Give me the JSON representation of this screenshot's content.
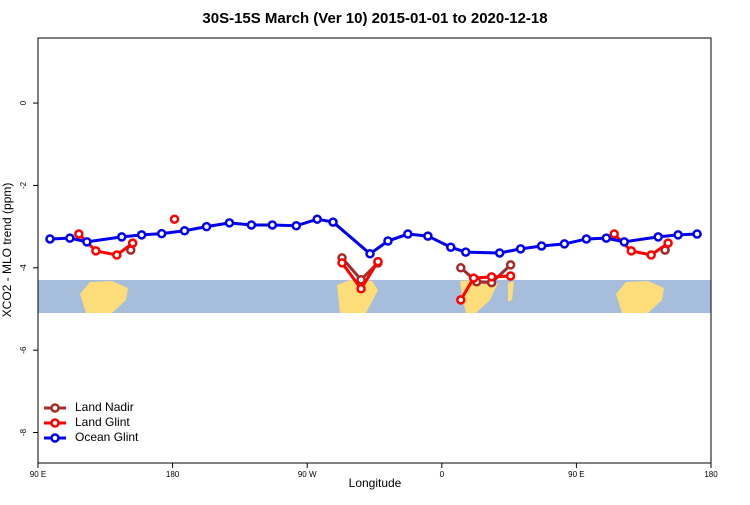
{
  "chart_data": {
    "type": "line",
    "title": "30S-15S March (Ver 10)   2015-01-01 to 2020-12-18",
    "x_label": "Longitude",
    "y_label": "XCO2 - MLO trend (ppm)",
    "xlim": [
      90,
      540
    ],
    "ylim": [
      -8.74,
      1.58
    ],
    "xticks": [
      {
        "value": 90,
        "label": "90 E"
      },
      {
        "value": 180,
        "label": "180"
      },
      {
        "value": 270,
        "label": "90 W"
      },
      {
        "value": 360,
        "label": "0"
      },
      {
        "value": 450,
        "label": "90 E"
      },
      {
        "value": 540,
        "label": "180"
      }
    ],
    "yticks": [
      0,
      -2,
      -4,
      -6,
      -8
    ],
    "legend": "bottom-left",
    "series": [
      {
        "name": "Land Nadir",
        "color": "#a52a2a",
        "x": [
          152,
          null,
          293.3,
          306,
          317.3,
          null,
          372.7,
          383.3,
          393.3,
          406,
          null,
          509.3
        ],
        "values": [
          -3.57,
          null,
          -3.76,
          -4.29,
          -3.88,
          null,
          -4.0,
          -4.34,
          -4.36,
          -3.93,
          null,
          -3.57
        ]
      },
      {
        "name": "Land Glint",
        "color": "#ff0000",
        "x": [
          117.3,
          128.7,
          142.7,
          153.3,
          null,
          181.3,
          null,
          293.3,
          306,
          317.3,
          null,
          372.7,
          381.3,
          393.3,
          406,
          null,
          475.3,
          486.7,
          500,
          511.3
        ],
        "values": [
          -3.18,
          -3.59,
          -3.69,
          -3.4,
          null,
          -2.82,
          null,
          -3.88,
          -4.51,
          -3.85,
          null,
          -4.78,
          -4.25,
          -4.22,
          -4.2,
          null,
          -3.18,
          -3.59,
          -3.69,
          -3.4
        ]
      },
      {
        "name": "Ocean Glint",
        "color": "#0000ee",
        "x": [
          98,
          111.3,
          122.7,
          146,
          159.3,
          172.7,
          188,
          202.7,
          218,
          232.7,
          246.7,
          262.7,
          276.7,
          287.3,
          312,
          324,
          337.3,
          350.7,
          366,
          376,
          398.7,
          412.7,
          426.7,
          442,
          456.7,
          470,
          482,
          504.7,
          518,
          530.7
        ],
        "values": [
          -3.3,
          -3.28,
          -3.37,
          -3.25,
          -3.2,
          -3.17,
          -3.1,
          -3.0,
          -2.91,
          -2.96,
          -2.96,
          -2.98,
          -2.82,
          -2.89,
          -3.66,
          -3.35,
          -3.18,
          -3.23,
          -3.5,
          -3.62,
          -3.64,
          -3.54,
          -3.47,
          -3.42,
          -3.3,
          -3.28,
          -3.37,
          -3.25,
          -3.2,
          -3.18
        ]
      }
    ]
  }
}
